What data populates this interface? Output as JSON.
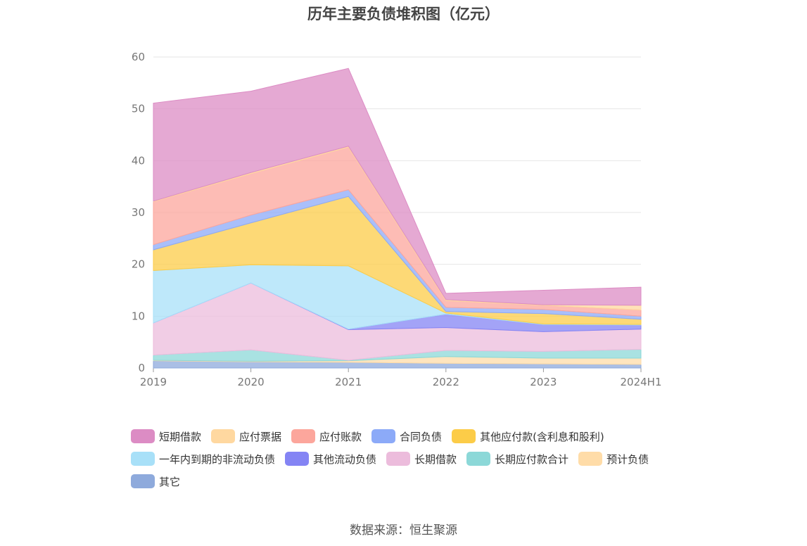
{
  "title": "历年主要负债堆积图（亿元）",
  "source": "数据来源：恒生聚源",
  "chart_data": {
    "type": "area",
    "stacked": true,
    "title": "历年主要负债堆积图（亿元）",
    "xlabel": "",
    "ylabel": "",
    "categories": [
      "2019",
      "2020",
      "2021",
      "2022",
      "2023",
      "2024H1"
    ],
    "ylim": [
      0,
      60
    ],
    "yticks": [
      0,
      10,
      20,
      30,
      40,
      50,
      60
    ],
    "grid": true,
    "legend_position": "bottom",
    "series": [
      {
        "name": "其它",
        "color": "#8eaadc",
        "values": [
          1.4,
          1.2,
          1.1,
          0.9,
          0.8,
          0.7
        ]
      },
      {
        "name": "预计负债",
        "color": "#ffdca8",
        "values": [
          0.1,
          0.1,
          0.3,
          1.3,
          1.1,
          1.2
        ]
      },
      {
        "name": "长期应付款合计",
        "color": "#8cd8d8",
        "values": [
          1.0,
          2.2,
          0.1,
          1.2,
          1.3,
          1.7
        ]
      },
      {
        "name": "长期借款",
        "color": "#ecbcdc",
        "values": [
          6.2,
          12.9,
          5.9,
          4.4,
          3.8,
          3.9
        ]
      },
      {
        "name": "其他流动负债",
        "color": "#8484f4",
        "values": [
          0.0,
          0.0,
          0.1,
          2.6,
          1.4,
          0.8
        ]
      },
      {
        "name": "一年内到期的非流动负债",
        "color": "#a8e0f8",
        "values": [
          10.1,
          3.5,
          12.2,
          0.2,
          0.1,
          0.1
        ]
      },
      {
        "name": "其他应付款(含利息和股利)",
        "color": "#fccc48",
        "values": [
          4.0,
          8.1,
          13.4,
          0.3,
          2.0,
          1.0
        ]
      },
      {
        "name": "合同负债",
        "color": "#8caaf8",
        "values": [
          1.0,
          1.5,
          1.3,
          0.8,
          0.8,
          0.6
        ]
      },
      {
        "name": "应付账款",
        "color": "#fca69c",
        "values": [
          8.3,
          8.0,
          8.2,
          1.3,
          0.8,
          1.2
        ]
      },
      {
        "name": "应付票据",
        "color": "#ffd8a0",
        "values": [
          0.1,
          0.2,
          0.2,
          0.2,
          0.1,
          0.9
        ]
      },
      {
        "name": "短期借款",
        "color": "#dc8cc4",
        "values": [
          18.9,
          15.7,
          15.0,
          1.2,
          2.8,
          3.5
        ]
      }
    ],
    "legend_order": [
      "短期借款",
      "应付票据",
      "应付账款",
      "合同负债",
      "其他应付款(含利息和股利)",
      "一年内到期的非流动负债",
      "其他流动负债",
      "长期借款",
      "长期应付款合计",
      "预计负债",
      "其它"
    ]
  }
}
